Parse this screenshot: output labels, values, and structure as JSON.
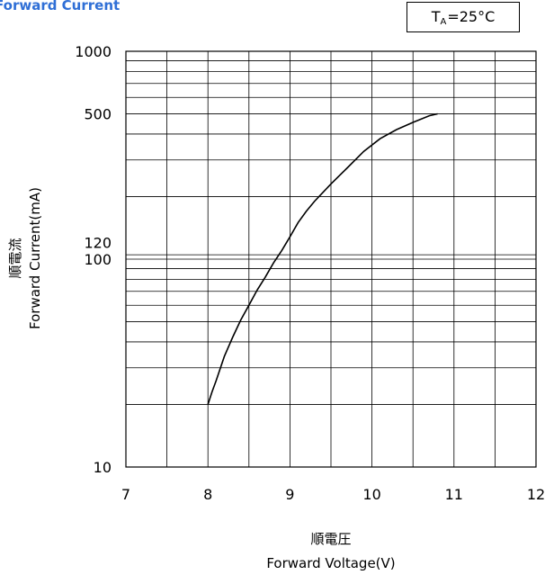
{
  "chart_data": {
    "type": "line",
    "title": "Forward Current",
    "condition": {
      "main": "T",
      "sub": "A",
      "rest": "=25°C"
    },
    "xlabel_jp": "順電圧",
    "xlabel": "Forward Voltage(V)",
    "ylabel_jp": "順電流",
    "ylabel": "Forward Current(mA)",
    "x_scale": "linear",
    "y_scale": "log",
    "xlim": [
      7,
      12
    ],
    "ylim": [
      10,
      1000
    ],
    "x_ticks": [
      7,
      8,
      9,
      10,
      11,
      12
    ],
    "y_tick_labels": [
      {
        "value": 1000,
        "label": "1000"
      },
      {
        "value": 500,
        "label": "500"
      },
      {
        "value": 120,
        "label": "120"
      },
      {
        "value": 100,
        "label": "100"
      },
      {
        "value": 10,
        "label": "10"
      }
    ],
    "grid": true,
    "x_grid": [
      7.5,
      8,
      8.5,
      9,
      9.5,
      10,
      10.5,
      11,
      11.5
    ],
    "y_grid": [
      20,
      30,
      40,
      50,
      60,
      70,
      80,
      90,
      100,
      105,
      200,
      300,
      400,
      500,
      600,
      700,
      800,
      900
    ],
    "series": [
      {
        "x": [
          8.0,
          8.05,
          8.1,
          8.2,
          8.3,
          8.4,
          8.5,
          8.6,
          8.7,
          8.8,
          8.9,
          9.0,
          9.1,
          9.2,
          9.3,
          9.5,
          9.7,
          9.9,
          10.1,
          10.3,
          10.5,
          10.7,
          10.8
        ],
        "y": [
          20,
          23,
          26,
          34,
          42,
          51,
          60,
          71,
          82,
          96,
          110,
          128,
          150,
          170,
          190,
          230,
          275,
          330,
          380,
          420,
          455,
          490,
          500
        ]
      }
    ]
  }
}
